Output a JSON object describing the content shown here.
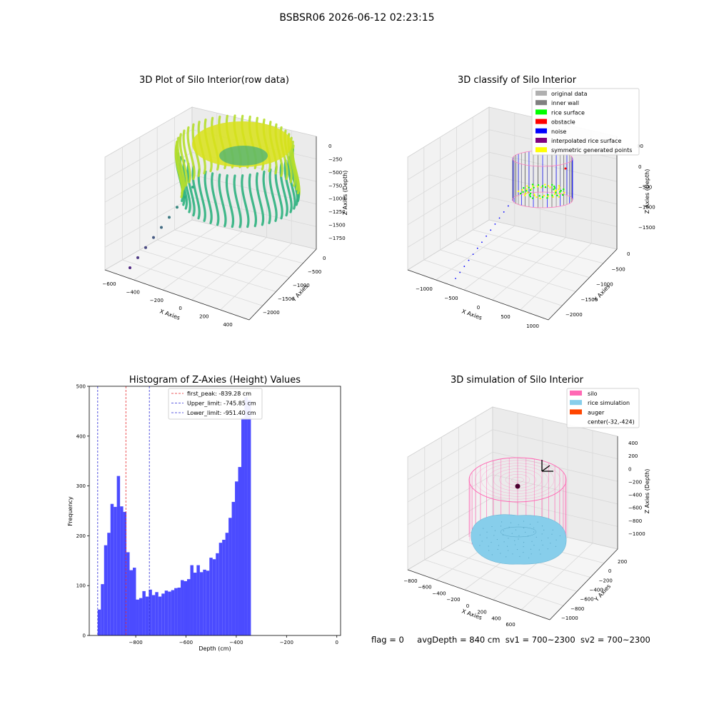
{
  "suptitle": "BSBSR06 2026-06-12 02:23:15",
  "footer": {
    "flag": "flag = 0",
    "avg_depth": "avgDepth = 840 cm",
    "sv1": "sv1 = 700~2300",
    "sv2": "sv2 = 700~2300"
  },
  "colors": {
    "histogram": "#4b4bff",
    "first_peak": "#e8262a",
    "limits": "#2b2bd6",
    "silo": "#ff69b4",
    "rice_simulation": "#87ceeb",
    "auger": "#ff4500",
    "original_data": "#b0b0b0",
    "inner_wall": "#808080",
    "rice_surface": "#00ff00",
    "obstacle": "#ff0000",
    "noise": "#0000ff",
    "interpolated_rice_surface": "#800080",
    "symmetric_generated_points": "#ffff00"
  },
  "chart_data": [
    {
      "type": "scatter",
      "title": "3D Plot of Silo Interior(row data)",
      "xlabel": "X Axies",
      "ylabel": "Y Axies",
      "zlabel": "Z Axies (Depth)",
      "x_ticks": [
        "−600",
        "−400",
        "−200",
        "0",
        "200",
        "400"
      ],
      "y_ticks": [
        "0",
        "−500",
        "−1000",
        "−1500",
        "−2000"
      ],
      "z_ticks": [
        "0",
        "−250",
        "−500",
        "−750",
        "−1000",
        "−1250",
        "−1500",
        "−1750"
      ],
      "outlier_points": [
        {
          "x": -460,
          "y": -1700,
          "z": -1900
        },
        {
          "x": -380,
          "y": -1550,
          "z": -1750
        },
        {
          "x": -300,
          "y": -1400,
          "z": -1650
        },
        {
          "x": -250,
          "y": -1250,
          "z": -1500
        },
        {
          "x": -200,
          "y": -1100,
          "z": -1380
        },
        {
          "x": -160,
          "y": -950,
          "z": -1250
        },
        {
          "x": -120,
          "y": -850,
          "z": -1150
        },
        {
          "x": -90,
          "y": -760,
          "z": -1050
        },
        {
          "x": -60,
          "y": -680,
          "z": -980
        }
      ]
    },
    {
      "type": "scatter",
      "title": "3D classify of Silo Interior",
      "xlabel": "X Axies",
      "ylabel": "Y Axies",
      "zlabel": "Z Axies (Depth)",
      "x_ticks": [
        "−1000",
        "−500",
        "0",
        "500",
        "1000"
      ],
      "y_ticks": [
        "0",
        "−500",
        "−1000",
        "−1500",
        "−2000"
      ],
      "z_ticks": [
        "0",
        "−500",
        "−1000",
        "−1500"
      ],
      "z_partial_tick": "00",
      "legend": [
        {
          "label": "original data",
          "color": "#b0b0b0"
        },
        {
          "label": "inner wall",
          "color": "#808080"
        },
        {
          "label": "rice surface",
          "color": "#00ff00"
        },
        {
          "label": "obstacle",
          "color": "#ff0000"
        },
        {
          "label": "noise",
          "color": "#0000ff"
        },
        {
          "label": "interpolated rice surface",
          "color": "#800080"
        },
        {
          "label": "symmetric generated points",
          "color": "#ffff00"
        }
      ],
      "legend_loc": "upper right"
    },
    {
      "type": "bar",
      "title": "Histogram of Z-Axies (Height) Values",
      "xlabel": "Depth (cm)",
      "ylabel": "Frequency",
      "xlim": [
        -985,
        15
      ],
      "ylim": [
        0,
        500
      ],
      "x_ticks": [
        -800,
        -600,
        -400,
        -200,
        0
      ],
      "x_tick_labels": [
        "−800",
        "−600",
        "−400",
        "−200",
        "0"
      ],
      "y_ticks": [
        0,
        100,
        200,
        300,
        400,
        500
      ],
      "bin_width": 12.7,
      "bin_start": -951.4,
      "values": [
        52,
        103,
        181,
        206,
        264,
        258,
        320,
        259,
        248,
        167,
        131,
        136,
        72,
        75,
        89,
        78,
        92,
        81,
        87,
        78,
        84,
        90,
        88,
        91,
        95,
        96,
        111,
        109,
        113,
        141,
        126,
        141,
        127,
        132,
        130,
        156,
        153,
        165,
        186,
        192,
        206,
        236,
        268,
        309,
        338,
        437,
        478,
        472
      ],
      "vlines": [
        {
          "label": "first_peak: -839.28 cm",
          "x": -839.28,
          "color": "#e8262a"
        },
        {
          "label": "Upper_limit: -745.85 cm",
          "x": -745.85,
          "color": "#2b2bd6"
        },
        {
          "label": "Lower_limit: -951.40 cm",
          "x": -951.4,
          "color": "#2b2bd6"
        }
      ],
      "legend_loc": "upper center"
    },
    {
      "type": "scatter",
      "title": "3D simulation of Silo Interior",
      "xlabel": "X Axies",
      "ylabel": "Y Axies",
      "zlabel": "Z Axies (Depth)",
      "x_ticks": [
        "−800",
        "−600",
        "−400",
        "−200",
        "0",
        "200",
        "400",
        "600"
      ],
      "y_ticks": [
        "200",
        "0",
        "−200",
        "−400",
        "−600",
        "−800",
        "−1000"
      ],
      "z_ticks": [
        "400",
        "200",
        "0",
        "−200",
        "−400",
        "−600",
        "−800",
        "−1000"
      ],
      "legend": [
        {
          "label": "silo",
          "color": "#ff69b4"
        },
        {
          "label": "rice simulation",
          "color": "#87ceeb"
        },
        {
          "label": "auger",
          "color": "#ff4500"
        },
        {
          "label": "center(-32,-424)",
          "color": ""
        }
      ],
      "legend_loc": "upper right"
    }
  ]
}
